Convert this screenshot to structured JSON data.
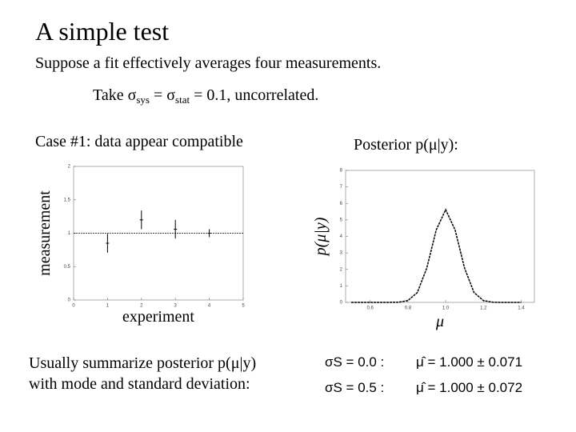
{
  "slide": {
    "title": "A simple test",
    "line1": "Suppose a fit effectively averages four measurements.",
    "line2": [
      "Take σ",
      "sys",
      " = σ",
      "stat",
      " = 0.1, uncorrelated."
    ],
    "case": "Case #1: data appear compatible",
    "posterior": "Posterior p(μ|y):",
    "summary": [
      "Usually summarize posterior p(μ|y)",
      "with mode and standard deviation:"
    ],
    "results": [
      [
        "σS = 0.0 :",
        "μ̂ = 1.000 ± 0.071"
      ],
      [
        "σS = 0.5 :",
        "μ̂ = 1.000 ± 0.072"
      ]
    ]
  },
  "chart_data": [
    {
      "type": "scatter",
      "x_label": "experiment",
      "y_label": "measurement",
      "x": [
        1,
        2,
        3,
        4
      ],
      "values": [
        0.85,
        1.2,
        1.06,
        1.0
      ],
      "errors": [
        0.14,
        0.14,
        0.14,
        0.06
      ],
      "reference_line": 1,
      "color": "#000000",
      "xlim": [
        0,
        5
      ],
      "ylim": [
        0,
        2
      ],
      "xticks": [
        0,
        1,
        2,
        3,
        4,
        5
      ],
      "yticks": [
        0,
        0.5,
        1,
        1.5,
        2
      ]
    },
    {
      "type": "line",
      "x_label": "μ",
      "y_label": "p(μ|y)",
      "x": [
        0.5,
        0.6,
        0.7,
        0.75,
        0.8,
        0.85,
        0.9,
        0.95,
        1.0,
        1.05,
        1.1,
        1.15,
        1.2,
        1.25,
        1.3,
        1.4
      ],
      "values": [
        0,
        0,
        0,
        0.01,
        0.11,
        0.6,
        2.08,
        4.39,
        5.62,
        4.39,
        2.08,
        0.6,
        0.11,
        0.01,
        0,
        0
      ],
      "color": "#000000",
      "xlim": [
        0.47,
        1.47
      ],
      "ylim": [
        0,
        8
      ],
      "xticks": [
        0.6,
        0.8,
        {
          "value": 1,
          "label": "1.0"
        },
        1.2,
        1.4
      ],
      "yticks": [
        0,
        1,
        2,
        3,
        4,
        5,
        6,
        7,
        8
      ]
    }
  ]
}
